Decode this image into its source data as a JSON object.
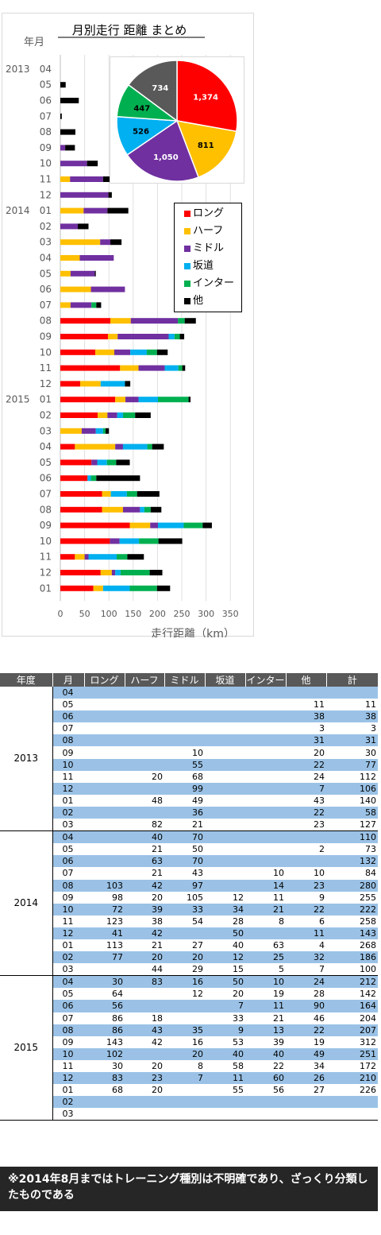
{
  "chart_data": {
    "type": "bar",
    "orientation": "horizontal",
    "stacked": true,
    "title": "月別走行 距離 まとめ",
    "ylabel": "年月",
    "xlabel": "走行距離（km）",
    "xlim": [
      0,
      350
    ],
    "xticks": [
      0,
      50,
      100,
      150,
      200,
      250,
      300,
      350
    ],
    "grid": true,
    "legend_position": "right-middle",
    "categories": [
      "04",
      "05",
      "06",
      "07",
      "08",
      "09",
      "10",
      "11",
      "12",
      "01",
      "02",
      "03",
      "04",
      "05",
      "06",
      "07",
      "08",
      "09",
      "10",
      "11",
      "12",
      "01",
      "02",
      "03",
      "04",
      "05",
      "06",
      "07",
      "08",
      "09",
      "10",
      "11",
      "12",
      "01"
    ],
    "year_labels": [
      {
        "label": "2013",
        "index": 0
      },
      {
        "label": "2014",
        "index": 9
      },
      {
        "label": "2015",
        "index": 21
      }
    ],
    "series": [
      {
        "name": "ロング",
        "color": "#ff0000",
        "values": [
          0,
          0,
          0,
          0,
          0,
          0,
          0,
          0,
          0,
          0,
          0,
          0,
          0,
          0,
          0,
          0,
          103,
          98,
          72,
          123,
          41,
          113,
          77,
          0,
          30,
          64,
          56,
          86,
          86,
          143,
          102,
          30,
          83,
          68
        ]
      },
      {
        "name": "ハーフ",
        "color": "#ffc000",
        "values": [
          0,
          0,
          0,
          0,
          0,
          0,
          0,
          20,
          0,
          48,
          0,
          82,
          40,
          21,
          63,
          21,
          42,
          20,
          39,
          38,
          42,
          21,
          20,
          44,
          83,
          0,
          0,
          18,
          43,
          42,
          0,
          20,
          23,
          20
        ]
      },
      {
        "name": "ミドル",
        "color": "#7030a0",
        "values": [
          0,
          0,
          0,
          0,
          0,
          10,
          55,
          68,
          99,
          49,
          36,
          21,
          70,
          50,
          70,
          43,
          97,
          105,
          33,
          54,
          0,
          27,
          20,
          29,
          16,
          12,
          0,
          0,
          35,
          16,
          20,
          8,
          7,
          0
        ]
      },
      {
        "name": "坂道",
        "color": "#00b0f0",
        "values": [
          0,
          0,
          0,
          0,
          0,
          0,
          0,
          0,
          0,
          0,
          0,
          0,
          0,
          0,
          0,
          0,
          0,
          12,
          34,
          28,
          50,
          40,
          12,
          15,
          50,
          20,
          7,
          33,
          9,
          53,
          40,
          58,
          11,
          55
        ]
      },
      {
        "name": "インター",
        "color": "#00b050",
        "values": [
          0,
          0,
          0,
          0,
          0,
          0,
          0,
          0,
          0,
          0,
          0,
          0,
          0,
          0,
          0,
          10,
          14,
          11,
          21,
          8,
          0,
          63,
          25,
          5,
          10,
          19,
          11,
          21,
          13,
          39,
          40,
          22,
          60,
          56
        ]
      },
      {
        "name": "他",
        "color": "#000000",
        "values": [
          0,
          11,
          38,
          3,
          31,
          20,
          22,
          24,
          7,
          43,
          22,
          23,
          0,
          2,
          0,
          10,
          23,
          9,
          22,
          6,
          11,
          4,
          32,
          7,
          24,
          28,
          90,
          46,
          22,
          19,
          49,
          34,
          26,
          27
        ]
      }
    ],
    "pie": {
      "labels": [
        "ロング",
        "ハーフ",
        "ミドル",
        "坂道",
        "インター",
        "他"
      ],
      "values": [
        1374,
        811,
        1050,
        526,
        447,
        734
      ],
      "value_labels": [
        "1,374",
        "811",
        "1,050",
        "526",
        "447",
        "734"
      ],
      "colors": [
        "#ff0000",
        "#ffc000",
        "#7030a0",
        "#00b0f0",
        "#00b050",
        "#595959"
      ]
    }
  },
  "table": {
    "headers": [
      "年度",
      "月",
      "ロング",
      "ハーフ",
      "ミドル",
      "坂道",
      "インター",
      "他",
      "計"
    ],
    "blocks": [
      {
        "year": "2013",
        "rows": [
          [
            "04",
            "",
            "",
            "",
            "",
            "",
            "",
            ""
          ],
          [
            "05",
            "",
            "",
            "",
            "",
            "",
            "11",
            "11"
          ],
          [
            "06",
            "",
            "",
            "",
            "",
            "",
            "38",
            "38"
          ],
          [
            "07",
            "",
            "",
            "",
            "",
            "",
            "3",
            "3"
          ],
          [
            "08",
            "",
            "",
            "",
            "",
            "",
            "31",
            "31"
          ],
          [
            "09",
            "",
            "",
            "10",
            "",
            "",
            "20",
            "30"
          ],
          [
            "10",
            "",
            "",
            "55",
            "",
            "",
            "22",
            "77"
          ],
          [
            "11",
            "",
            "20",
            "68",
            "",
            "",
            "24",
            "112"
          ],
          [
            "12",
            "",
            "",
            "99",
            "",
            "",
            "7",
            "106"
          ],
          [
            "01",
            "",
            "48",
            "49",
            "",
            "",
            "43",
            "140"
          ],
          [
            "02",
            "",
            "",
            "36",
            "",
            "",
            "22",
            "58"
          ],
          [
            "03",
            "",
            "82",
            "21",
            "",
            "",
            "23",
            "127"
          ]
        ]
      },
      {
        "year": "2014",
        "rows": [
          [
            "04",
            "",
            "40",
            "70",
            "",
            "",
            "",
            "110"
          ],
          [
            "05",
            "",
            "21",
            "50",
            "",
            "",
            "2",
            "73"
          ],
          [
            "06",
            "",
            "63",
            "70",
            "",
            "",
            "",
            "132"
          ],
          [
            "07",
            "",
            "21",
            "43",
            "",
            "10",
            "10",
            "84"
          ],
          [
            "08",
            "103",
            "42",
            "97",
            "",
            "14",
            "23",
            "280"
          ],
          [
            "09",
            "98",
            "20",
            "105",
            "12",
            "11",
            "9",
            "255"
          ],
          [
            "10",
            "72",
            "39",
            "33",
            "34",
            "21",
            "22",
            "222"
          ],
          [
            "11",
            "123",
            "38",
            "54",
            "28",
            "8",
            "6",
            "258"
          ],
          [
            "12",
            "41",
            "42",
            "",
            "50",
            "",
            "11",
            "143"
          ],
          [
            "01",
            "113",
            "21",
            "27",
            "40",
            "63",
            "4",
            "268"
          ],
          [
            "02",
            "77",
            "20",
            "20",
            "12",
            "25",
            "32",
            "186"
          ],
          [
            "03",
            "",
            "44",
            "29",
            "15",
            "5",
            "7",
            "100"
          ]
        ]
      },
      {
        "year": "2015",
        "rows": [
          [
            "04",
            "30",
            "83",
            "16",
            "50",
            "10",
            "24",
            "212"
          ],
          [
            "05",
            "64",
            "",
            "12",
            "20",
            "19",
            "28",
            "142"
          ],
          [
            "06",
            "56",
            "",
            "",
            "7",
            "11",
            "90",
            "164"
          ],
          [
            "07",
            "86",
            "18",
            "",
            "33",
            "21",
            "46",
            "204"
          ],
          [
            "08",
            "86",
            "43",
            "35",
            "9",
            "13",
            "22",
            "207"
          ],
          [
            "09",
            "143",
            "42",
            "16",
            "53",
            "39",
            "19",
            "312"
          ],
          [
            "10",
            "102",
            "",
            "20",
            "40",
            "40",
            "49",
            "251"
          ],
          [
            "11",
            "30",
            "20",
            "8",
            "58",
            "22",
            "34",
            "172"
          ],
          [
            "12",
            "83",
            "23",
            "7",
            "11",
            "60",
            "26",
            "210"
          ],
          [
            "01",
            "68",
            "20",
            "",
            "55",
            "56",
            "27",
            "226"
          ],
          [
            "02",
            "",
            "",
            "",
            "",
            "",
            "",
            ""
          ],
          [
            "03",
            "",
            "",
            "",
            "",
            "",
            "",
            ""
          ]
        ]
      }
    ]
  },
  "note": "※2014年8月まではトレーニング種別は不明確であり、ざっくり分類したものである"
}
